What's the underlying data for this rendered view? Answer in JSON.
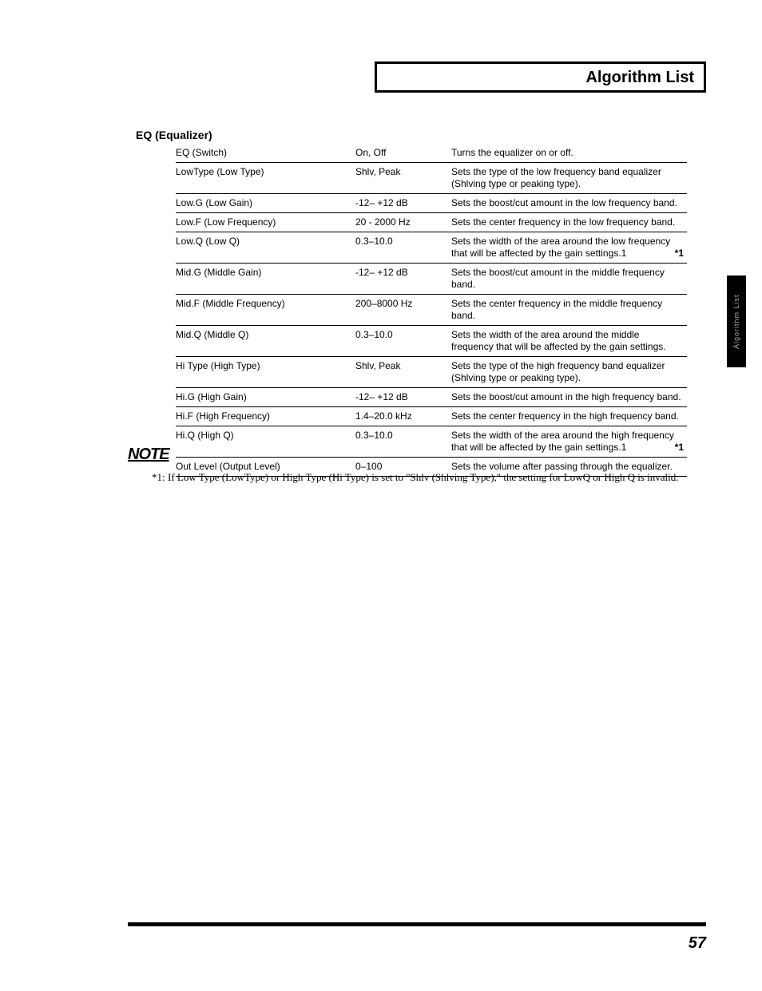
{
  "header": {
    "title": "Algorithm List"
  },
  "section": {
    "title": "EQ (Equalizer)"
  },
  "side_tab": "Algorithm List",
  "page_number": "57",
  "note": {
    "icon": "NOTE",
    "label": "*1:",
    "text": "If Low Type (LowType) or High Type (Hi Type) is set to \"Shlv (Shlving Type),\" the setting for LowQ or High Q is invalid."
  },
  "rows": [
    {
      "param": "EQ (Switch)",
      "range": "On, Off",
      "desc": "Turns the equalizer on or off.",
      "mark": ""
    },
    {
      "param": "LowType (Low Type)",
      "range": "Shlv, Peak",
      "desc": "Sets the type of the low frequency band equalizer (Shlving type or peaking type).",
      "mark": ""
    },
    {
      "param": "Low.G (Low Gain)",
      "range": "-12– +12 dB",
      "desc": "Sets the boost/cut amount in the low frequency band.",
      "mark": ""
    },
    {
      "param": "Low.F (Low Frequency)",
      "range": "20 - 2000 Hz",
      "desc": "Sets the center frequency in the low frequency band.",
      "mark": ""
    },
    {
      "param": "Low.Q (Low Q)",
      "range": "0.3–10.0",
      "desc": "Sets the width of the area around the low frequency that will be affected by the gain settings.1",
      "mark": "*1"
    },
    {
      "param": "Mid.G (Middle Gain)",
      "range": "-12– +12 dB",
      "desc": "Sets the boost/cut amount in the middle frequency band.",
      "mark": ""
    },
    {
      "param": "Mid.F (Middle Frequency)",
      "range": "200–8000 Hz",
      "desc": "Sets the center frequency in the middle frequency band.",
      "mark": ""
    },
    {
      "param": "Mid.Q (Middle Q)",
      "range": "0.3–10.0",
      "desc": "Sets the width of the area around the middle frequency that will be affected by the gain settings.",
      "mark": ""
    },
    {
      "param": "Hi Type (High Type)",
      "range": "Shlv, Peak",
      "desc": "Sets the type of the high frequency band equalizer (Shlving type or peaking type).",
      "mark": ""
    },
    {
      "param": "Hi.G (High Gain)",
      "range": "-12– +12 dB",
      "desc": "Sets the boost/cut amount in the high frequency band.",
      "mark": ""
    },
    {
      "param": "Hi.F (High Frequency)",
      "range": "1.4–20.0 kHz",
      "desc": "Sets the center frequency in the high frequency band.",
      "mark": ""
    },
    {
      "param": "Hi.Q (High Q)",
      "range": "0.3–10.0",
      "desc": "Sets the width of the area around the high frequency that will be affected by the gain settings.1",
      "mark": "*1"
    },
    {
      "param": "Out Level (Output Level)",
      "range": "0–100",
      "desc": "Sets the volume after passing through the equalizer.",
      "mark": ""
    }
  ]
}
